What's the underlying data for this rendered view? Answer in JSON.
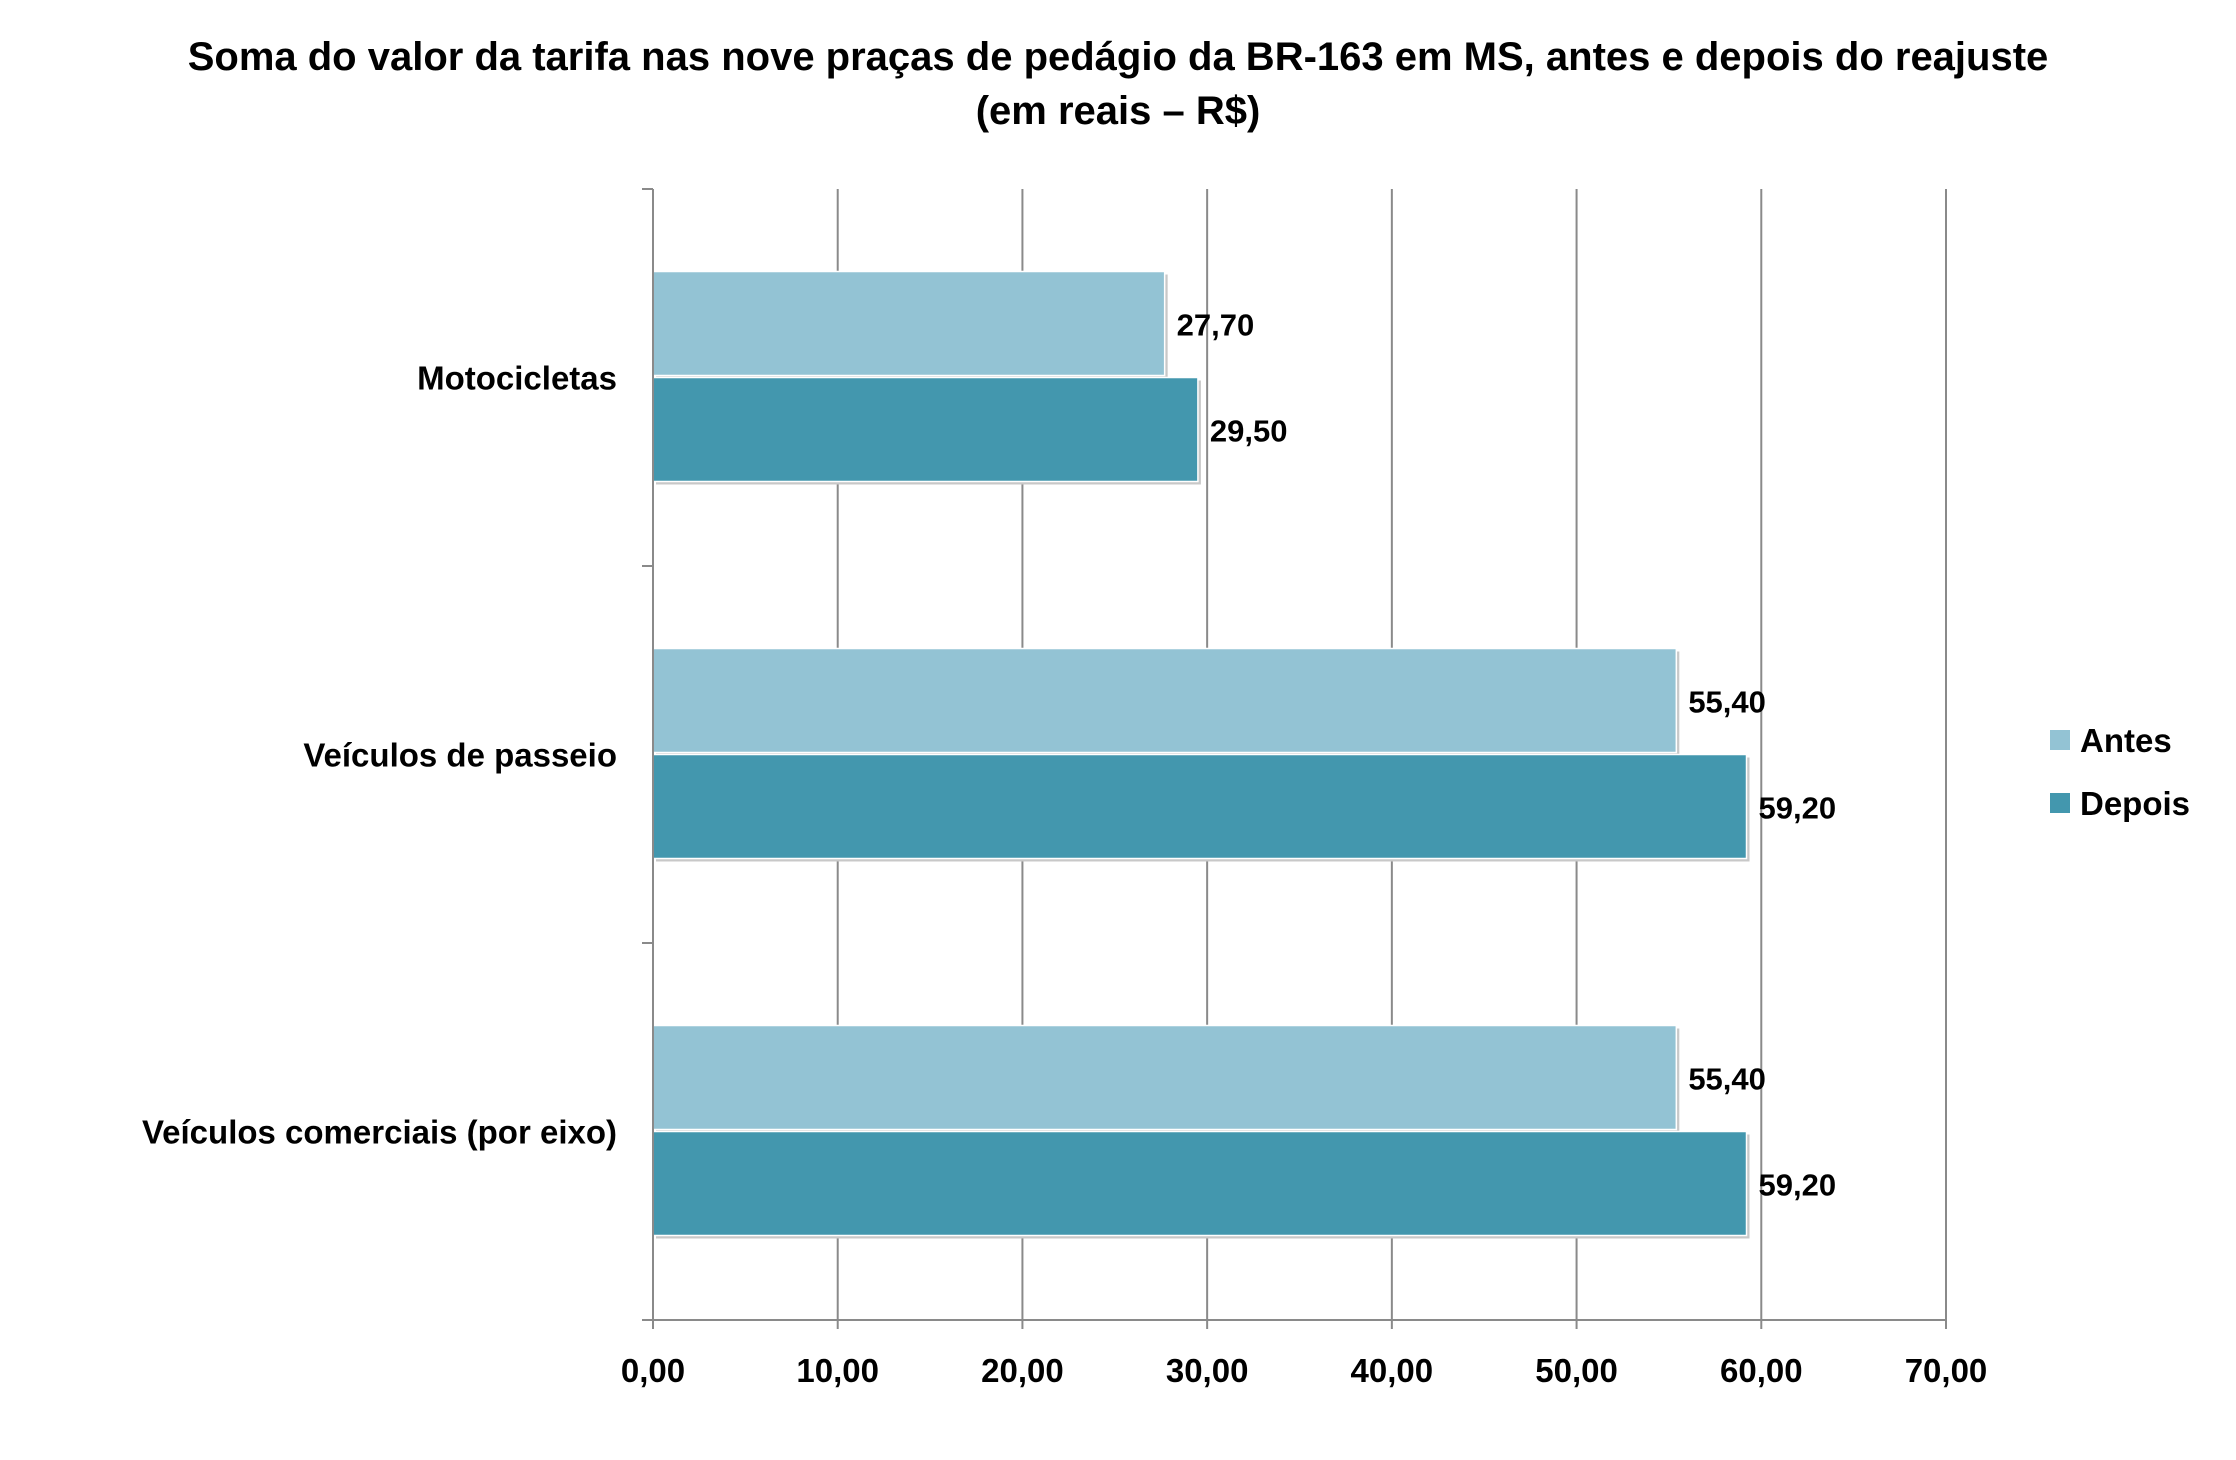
{
  "chart_data": {
    "type": "bar",
    "orientation": "horizontal",
    "title": "Soma do valor da tarifa nas nove praças de pedágio da BR-163 em MS, antes e depois do reajuste",
    "subtitle": "(em reais – R$)",
    "categories": [
      "Motocicletas",
      "Veículos de passeio",
      "Veículos comerciais (por eixo)"
    ],
    "series": [
      {
        "name": "Antes",
        "color": "#93c3d4",
        "values": [
          27.7,
          55.4,
          55.4
        ],
        "labels": [
          "27,70",
          "55,40",
          "55,40"
        ]
      },
      {
        "name": "Depois",
        "color": "#4397ae",
        "values": [
          29.5,
          59.2,
          59.2
        ],
        "labels": [
          "29,50",
          "59,20",
          "59,20"
        ]
      }
    ],
    "x_ticks": [
      "0,00",
      "10,00",
      "20,00",
      "30,00",
      "40,00",
      "50,00",
      "60,00",
      "70,00"
    ],
    "xlim": [
      0,
      70
    ],
    "xlabel": "",
    "ylabel": "",
    "grid": true,
    "legend_position": "right"
  }
}
